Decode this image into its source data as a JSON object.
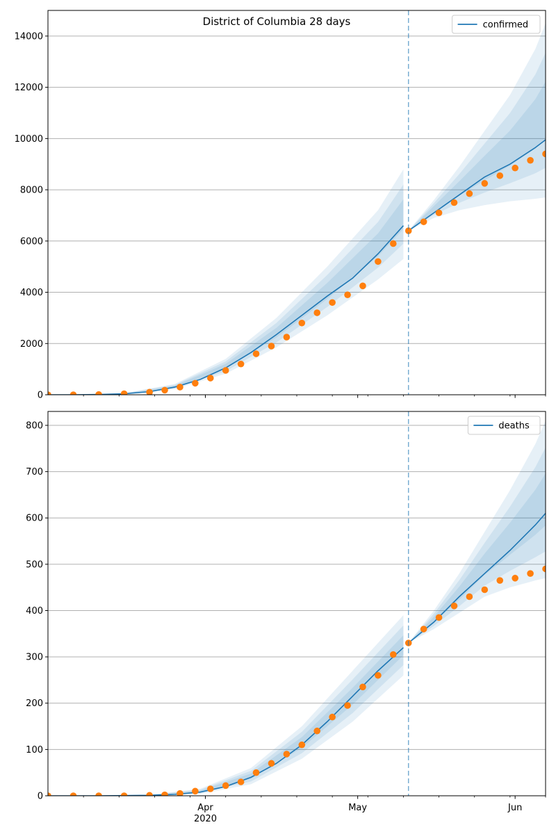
{
  "title": "District of Columbia 28 days",
  "x_ticks": [
    {
      "label": "Apr",
      "sub": "2020",
      "date": "2020-04-01"
    },
    {
      "label": "May",
      "sub": "",
      "date": "2020-05-01"
    },
    {
      "label": "Jun",
      "sub": "",
      "date": "2020-06-01"
    }
  ],
  "colors": {
    "model_line": "#1f77b4",
    "observed": "#ff7f0e",
    "band": "#1f77b4",
    "grid": "#b0b0b0",
    "vline": "#1f77b4"
  },
  "chart_data": [
    {
      "type": "line",
      "title": "District of Columbia 28 days",
      "legend": "confirmed",
      "legend_position": "top-right",
      "grid": "horizontal",
      "xlim": [
        "2020-03-01",
        "2020-06-07"
      ],
      "ylim": [
        0,
        15000
      ],
      "y_ticks": [
        0,
        2000,
        4000,
        6000,
        8000,
        10000,
        12000,
        14000
      ],
      "forecast_start": "2020-05-11",
      "series": [
        {
          "name": "confirmed",
          "kind": "model",
          "x": [
            "2020-03-01",
            "2020-03-06",
            "2020-03-11",
            "2020-03-16",
            "2020-03-21",
            "2020-03-26",
            "2020-03-31",
            "2020-04-05",
            "2020-04-10",
            "2020-04-15",
            "2020-04-20",
            "2020-04-25",
            "2020-04-30",
            "2020-05-05",
            "2020-05-10",
            "2020-05-11",
            "2020-05-16",
            "2020-05-21",
            "2020-05-26",
            "2020-05-31",
            "2020-06-05",
            "2020-06-07"
          ],
          "values": [
            0,
            0,
            10,
            40,
            120,
            300,
            600,
            1050,
            1650,
            2350,
            3100,
            3850,
            4550,
            5500,
            6600,
            6400,
            7100,
            7800,
            8500,
            9000,
            9650,
            9950
          ]
        },
        {
          "name": "",
          "kind": "observed",
          "x": [
            "2020-03-01",
            "2020-03-06",
            "2020-03-11",
            "2020-03-16",
            "2020-03-21",
            "2020-03-24",
            "2020-03-27",
            "2020-03-30",
            "2020-04-02",
            "2020-04-05",
            "2020-04-08",
            "2020-04-11",
            "2020-04-14",
            "2020-04-17",
            "2020-04-20",
            "2020-04-23",
            "2020-04-26",
            "2020-04-29",
            "2020-05-02",
            "2020-05-05",
            "2020-05-08",
            "2020-05-11",
            "2020-05-14",
            "2020-05-17",
            "2020-05-20",
            "2020-05-23",
            "2020-05-26",
            "2020-05-29",
            "2020-06-01",
            "2020-06-04",
            "2020-06-07"
          ],
          "values": [
            0,
            0,
            10,
            40,
            100,
            180,
            300,
            450,
            650,
            950,
            1200,
            1600,
            1900,
            2250,
            2800,
            3200,
            3600,
            3900,
            4250,
            5200,
            5900,
            6400,
            6750,
            7100,
            7500,
            7850,
            8250,
            8550,
            8850,
            9150,
            9400
          ]
        }
      ],
      "bands": [
        {
          "x": [
            "2020-03-01",
            "2020-03-16",
            "2020-03-26",
            "2020-04-05",
            "2020-04-15",
            "2020-04-25",
            "2020-05-05",
            "2020-05-10"
          ],
          "lower": [
            0,
            30,
            220,
            820,
            1850,
            3100,
            4500,
            5300
          ],
          "upper": [
            0,
            60,
            420,
            1400,
            3000,
            5000,
            7200,
            8800
          ]
        },
        {
          "x": [
            "2020-05-11",
            "2020-05-16",
            "2020-05-21",
            "2020-05-26",
            "2020-05-31",
            "2020-06-05",
            "2020-06-07"
          ],
          "lower": [
            6400,
            6900,
            7200,
            7400,
            7550,
            7650,
            7700
          ],
          "upper": [
            6400,
            7600,
            8900,
            10300,
            11700,
            13500,
            14500
          ]
        }
      ]
    },
    {
      "type": "line",
      "title": "",
      "legend": "deaths",
      "legend_position": "top-right",
      "grid": "horizontal",
      "xlim": [
        "2020-03-01",
        "2020-06-07"
      ],
      "ylim": [
        0,
        830
      ],
      "y_ticks": [
        0,
        100,
        200,
        300,
        400,
        500,
        600,
        700,
        800
      ],
      "forecast_start": "2020-05-11",
      "series": [
        {
          "name": "deaths",
          "kind": "model",
          "x": [
            "2020-03-01",
            "2020-03-11",
            "2020-03-21",
            "2020-03-26",
            "2020-03-31",
            "2020-04-05",
            "2020-04-10",
            "2020-04-15",
            "2020-04-20",
            "2020-04-25",
            "2020-04-30",
            "2020-05-05",
            "2020-05-10",
            "2020-05-11",
            "2020-05-16",
            "2020-05-21",
            "2020-05-26",
            "2020-05-31",
            "2020-06-05",
            "2020-06-07"
          ],
          "values": [
            0,
            0,
            1,
            3,
            8,
            20,
            40,
            70,
            110,
            160,
            215,
            270,
            320,
            330,
            375,
            430,
            480,
            530,
            585,
            610
          ]
        },
        {
          "name": "",
          "kind": "observed",
          "x": [
            "2020-03-01",
            "2020-03-06",
            "2020-03-11",
            "2020-03-16",
            "2020-03-21",
            "2020-03-24",
            "2020-03-27",
            "2020-03-30",
            "2020-04-02",
            "2020-04-05",
            "2020-04-08",
            "2020-04-11",
            "2020-04-14",
            "2020-04-17",
            "2020-04-20",
            "2020-04-23",
            "2020-04-26",
            "2020-04-29",
            "2020-05-02",
            "2020-05-05",
            "2020-05-08",
            "2020-05-11",
            "2020-05-14",
            "2020-05-17",
            "2020-05-20",
            "2020-05-23",
            "2020-05-26",
            "2020-05-29",
            "2020-06-01",
            "2020-06-04",
            "2020-06-07"
          ],
          "values": [
            0,
            0,
            0,
            0,
            1,
            2,
            5,
            10,
            15,
            22,
            30,
            50,
            70,
            90,
            110,
            140,
            170,
            195,
            235,
            260,
            305,
            330,
            360,
            385,
            410,
            430,
            445,
            465,
            470,
            480,
            490
          ]
        }
      ],
      "bands": [
        {
          "x": [
            "2020-03-01",
            "2020-03-21",
            "2020-03-31",
            "2020-04-10",
            "2020-04-20",
            "2020-04-30",
            "2020-05-10"
          ],
          "lower": [
            0,
            1,
            4,
            25,
            80,
            160,
            260
          ],
          "upper": [
            0,
            2,
            15,
            60,
            150,
            270,
            390
          ]
        },
        {
          "x": [
            "2020-05-11",
            "2020-05-16",
            "2020-05-21",
            "2020-05-26",
            "2020-05-31",
            "2020-06-05",
            "2020-06-07"
          ],
          "lower": [
            330,
            360,
            395,
            430,
            450,
            465,
            470
          ],
          "upper": [
            330,
            400,
            480,
            570,
            660,
            760,
            810
          ]
        }
      ]
    }
  ]
}
